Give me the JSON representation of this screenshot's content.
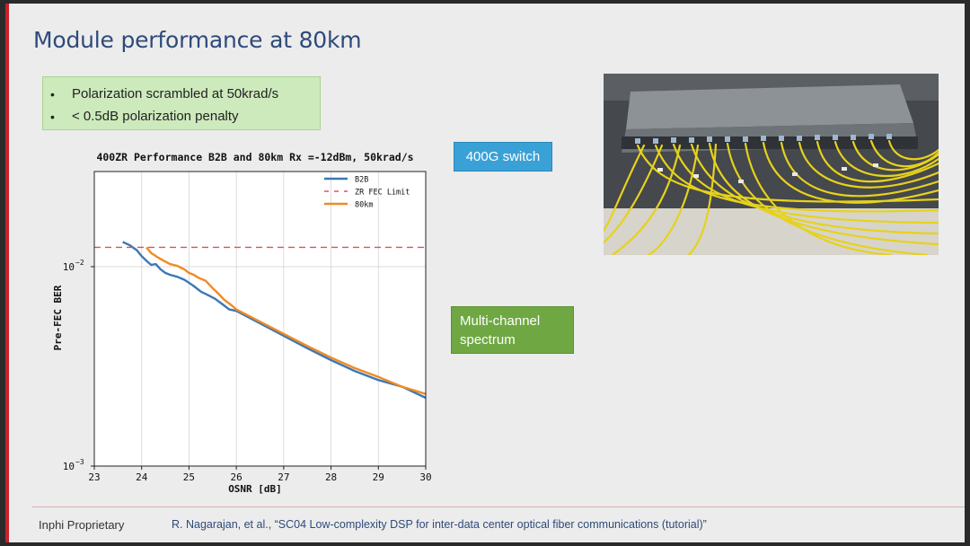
{
  "slide": {
    "title": "Module performance at 80km",
    "bullets": [
      "Polarization scrambled at 50krad/s",
      "< 0.5dB polarization penalty"
    ],
    "tags": {
      "switch": "400G switch",
      "spectrum_line1": "Multi-channel",
      "spectrum_line2": "spectrum"
    },
    "footer": {
      "left": "Inphi Proprietary",
      "right": "R. Nagarajan, et al., “SC04  Low-complexity DSP for inter-data center optical fiber communications (tutorial)”"
    }
  },
  "colors": {
    "title": "#2e4a7a",
    "b2b": "#3b78b4",
    "fec": "#e0505a",
    "km80": "#f28a24"
  },
  "chart_data": {
    "type": "line",
    "title": "400ZR Performance B2B and 80km Rx =-12dBm, 50krad/s",
    "xlabel": "OSNR [dB]",
    "ylabel": "Pre-FEC BER",
    "xlim": [
      23,
      30
    ],
    "ylim": [
      0.001,
      0.03
    ],
    "yscale": "log",
    "grid": true,
    "legend_position": "top-right",
    "x_ticks": [
      "23",
      "24",
      "25",
      "26",
      "27",
      "28",
      "29",
      "30"
    ],
    "y_ticks": [
      {
        "value": 0.01,
        "base": "10",
        "exp": "−2"
      },
      {
        "value": 0.001,
        "base": "10",
        "exp": "−3"
      }
    ],
    "series": [
      {
        "name": "B2B",
        "color": "#3b78b4",
        "style": "solid",
        "x": [
          23.6,
          23.75,
          23.9,
          24.0,
          24.1,
          24.2,
          24.3,
          24.4,
          24.5,
          24.6,
          24.75,
          24.9,
          25.0,
          25.1,
          25.25,
          25.4,
          25.55,
          25.7,
          25.85,
          26.0,
          26.5,
          27.0,
          27.5,
          28.0,
          28.5,
          29.0,
          29.5,
          30.0
        ],
        "y": [
          0.0133,
          0.0128,
          0.0121,
          0.0113,
          0.0107,
          0.0102,
          0.0103,
          0.0097,
          0.0093,
          0.0091,
          0.0089,
          0.0086,
          0.0083,
          0.008,
          0.0075,
          0.0072,
          0.0069,
          0.0065,
          0.0061,
          0.006,
          0.0052,
          0.0045,
          0.0039,
          0.0034,
          0.003,
          0.0027,
          0.0025,
          0.0022
        ]
      },
      {
        "name": "ZR FEC Limit",
        "color": "#e0505a",
        "style": "dashed",
        "x": [
          23,
          30
        ],
        "y": [
          0.0125,
          0.0125
        ]
      },
      {
        "name": "80km",
        "color": "#f28a24",
        "style": "solid",
        "x": [
          24.1,
          24.2,
          24.35,
          24.5,
          24.6,
          24.75,
          24.9,
          25.0,
          25.1,
          25.2,
          25.35,
          25.5,
          25.6,
          25.75,
          25.9,
          26.0,
          26.5,
          27.0,
          27.5,
          28.0,
          28.5,
          29.0,
          29.5,
          30.0
        ],
        "y": [
          0.0125,
          0.0117,
          0.0111,
          0.0106,
          0.0103,
          0.0101,
          0.0097,
          0.0093,
          0.0091,
          0.0088,
          0.0085,
          0.0078,
          0.0074,
          0.0068,
          0.0064,
          0.0061,
          0.0053,
          0.0046,
          0.004,
          0.0035,
          0.0031,
          0.0028,
          0.0025,
          0.0023
        ]
      }
    ]
  }
}
